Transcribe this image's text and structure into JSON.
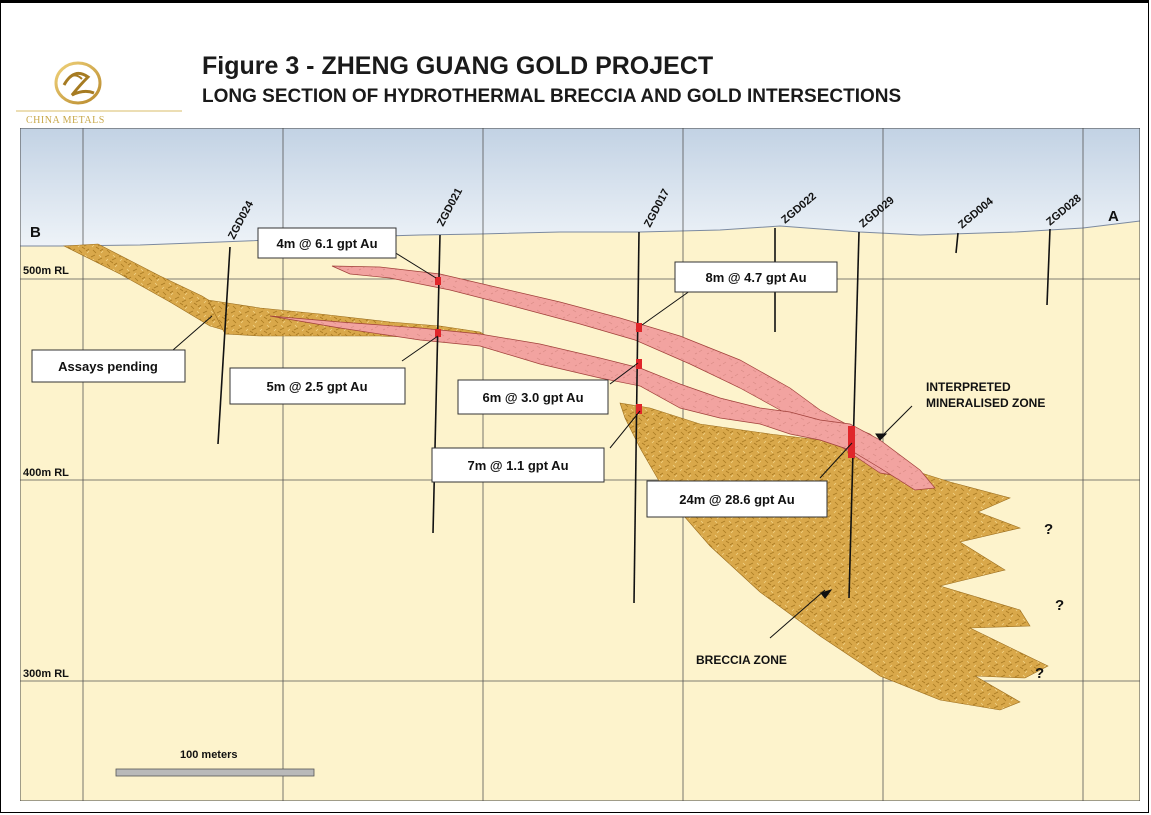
{
  "header": {
    "logo_text": "CHINA METALS",
    "title": "Figure 3 - ZHENG GUANG GOLD PROJECT",
    "subtitle": "LONG SECTION OF HYDROTHERMAL BRECCIA AND GOLD INTERSECTIONS"
  },
  "section": {
    "end_left": "B",
    "end_right": "A",
    "rl_labels": [
      "500m RL",
      "400m RL",
      "300m RL"
    ],
    "drillholes": [
      "ZGD024",
      "ZGD021",
      "ZGD017",
      "ZGD022",
      "ZGD029",
      "ZGD004",
      "ZGD028"
    ],
    "intersections": [
      "4m @ 6.1 gpt Au",
      "8m @ 4.7 gpt Au",
      "5m @ 2.5 gpt Au",
      "6m @ 3.0 gpt Au",
      "7m @ 1.1 gpt Au",
      "24m @ 28.6 gpt Au"
    ],
    "assays_pending": "Assays pending",
    "interpreted_zone_line1": "INTERPRETED",
    "interpreted_zone_line2": "MINERALISED ZONE",
    "breccia_zone": "BRECCIA ZONE",
    "question_mark": "?",
    "scale_label": "100 meters"
  },
  "colors": {
    "sky_top": "#c9d7e6",
    "ground": "#fdf3cc",
    "breccia": "#d9a84a",
    "mineralised": "#f2a7a0",
    "intersection": "#e0262a"
  }
}
